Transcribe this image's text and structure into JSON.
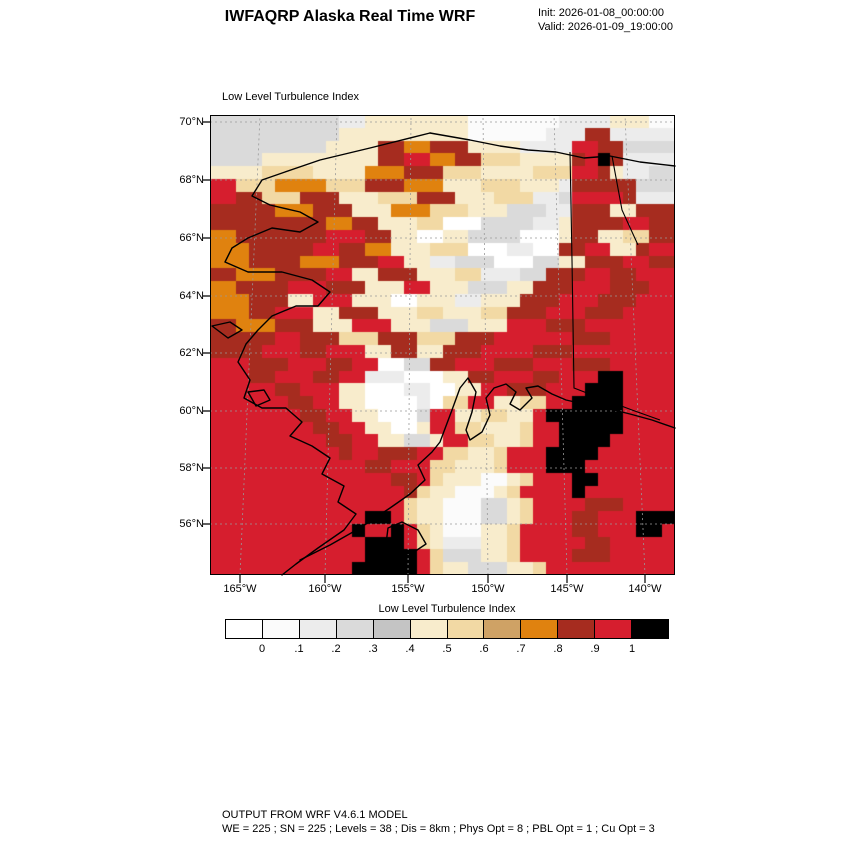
{
  "header": {
    "title": "IWFAQRP Alaska Real Time WRF",
    "init_line": "Init: 2026-01-08_00:00:00",
    "valid_line": "Valid: 2026-01-09_19:00:00"
  },
  "map": {
    "field_label": "Low Level Turbulence Index",
    "lat_tick_labels": [
      "70°N",
      "68°N",
      "66°N",
      "64°N",
      "62°N",
      "60°N",
      "58°N",
      "56°N"
    ],
    "lon_tick_labels": [
      "165°W",
      "160°W",
      "155°W",
      "150°W",
      "145°W",
      "140°W"
    ]
  },
  "colorbar": {
    "label": "Low Level Turbulence Index",
    "tick_labels": [
      "0",
      ".1",
      ".2",
      ".3",
      ".4",
      ".5",
      ".6",
      ".7",
      ".8",
      ".9",
      "1"
    ]
  },
  "footer": {
    "line1": "OUTPUT FROM WRF V4.6.1 MODEL",
    "line2": "WE = 225 ; SN = 225 ; Levels = 38 ; Dis = 8km ; Phys Opt = 8 ; PBL Opt = 1 ; Cu Opt = 3"
  },
  "chart_data": {
    "type": "heatmap",
    "title": "Low Level Turbulence Index",
    "value_range": [
      0,
      1
    ],
    "bin_edges": [
      0,
      0.1,
      0.2,
      0.3,
      0.4,
      0.5,
      0.6,
      0.7,
      0.8,
      0.9,
      1
    ],
    "lat_ticks_deg_n": [
      70,
      68,
      66,
      64,
      62,
      60,
      58,
      56
    ],
    "lon_ticks_deg_w": [
      165,
      160,
      155,
      150,
      145,
      140
    ],
    "palette": [
      "#ffffff",
      "#fbfbfb",
      "#ececec",
      "#dadada",
      "#c4c4c4",
      "#f8eccc",
      "#f2d9a4",
      "#cfa265",
      "#e0820f",
      "#a62c1f",
      "#d61e2e",
      "#000000"
    ],
    "grid_cols": 36,
    "grid_rows": 36,
    "grid_encoding": "one char per cell, base-12 digit (0-9,a,b) indexing palette; coarse approximation of the turbulence field",
    "grid": [
      "333333333322555555551111111222255511",
      "333333333355555555551111112229922222",
      "3333333335555998899955552222aa993333",
      "333355555555599aa889966655559ab92222",
      "5555666655558889996665555666aa952233",
      "aa6668888666999888555666555299999333",
      "aa99666999555666999555666223aaaa9222",
      "999998889995558886665553332299955999",
      "99999999988995556600033332259999aa99",
      "889999999aaa995500553333000599556699",
      "88899999aa9988555666000220099aa559aa",
      "8889999888999aa55223330003355999aa99",
      "998889999aa559995556622233999aa99aaa",
      "889999aaa999555aa55533355999aaa999aa",
      "88899955aaa5550055522555999aaa999aaa",
      "88899aaa559995556655566999aaa999aaaa",
      "99888999555aaa555333555aaa999aaaaaaa",
      "99999aa999666999666999aaaaaa999aaaaa",
      "9999aaa99aaa559955999aaaa999aaaaaaaa",
      "aaa999aaa99aa003399aaa999aaa999aaaaa",
      "aaa99aaa99aa2220005599aaa99aaabbaaaa",
      "aaaaa99aaa55000220055aa999aaabbbaaaa",
      "aaaaaa99aa5500002066aa5566aabbbbaaaa",
      "aaaaaaa99aa550003aa556655abbbbbbaaaa",
      "aaaaaaaa99aa55005aa665556aabbbbbaaaa",
      "aaaaaaaaa99aa55335aa66556aabbbbaaaaa",
      "aaaaaaaaaa9aa999aa66556aaabbbbaaaaaa",
      "aaaaaaaaaaaa99aaa665556aaabbbaaaaaaa",
      "aaaaaaaaaaaaaa99a65551156aaabbaaaaaa",
      "aaaaaaaaaaaaaaa965511156aaaabaaaaaaa",
      "aaaaaaaaaaaaaaa6551113356aaaa999aaaa",
      "aaaaaaaaaaaabba6551113356aaa99aaabbb",
      "aaaaaaaaaaabaaba65111556aaaa99aaabba",
      "aaaaaaaaaaaabbba65222556aaaaa99aaaaa",
      "aaaaaaaaaaaabbbba6333556aaaa999aaaaa",
      "aaaaaaaaaaabbbbba655333556aaaaaaaaaa"
    ]
  }
}
